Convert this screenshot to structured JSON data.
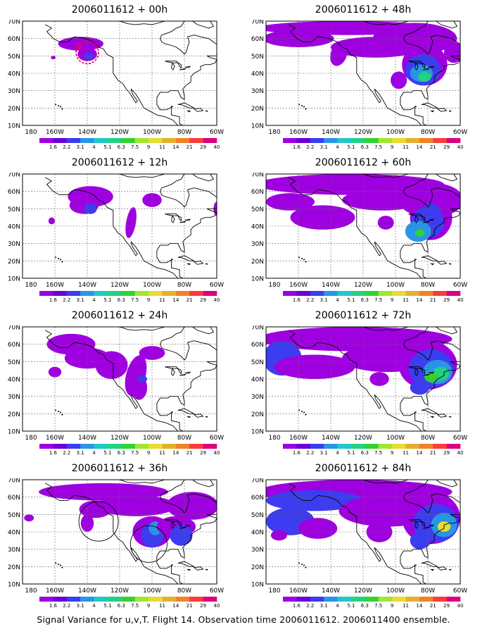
{
  "caption": "Signal Variance for u,v,T. Flight 14. Observation time 2006011612. 2006011400 ensemble.",
  "x_ticks": [
    "180",
    "160W",
    "140W",
    "120W",
    "100W",
    "80W",
    "60W"
  ],
  "y_ticks": [
    "10N",
    "20N",
    "30N",
    "40N",
    "50N",
    "60N",
    "70N"
  ],
  "colorbar": {
    "labels": [
      "1.6",
      "2.2",
      "3.1",
      "4",
      "5.1",
      "6.3",
      "7.5",
      "9",
      "11",
      "14",
      "21",
      "29",
      "40"
    ],
    "colors": [
      "#9f00e0",
      "#6b00d8",
      "#3c3cf0",
      "#2896e6",
      "#21c8c8",
      "#21d282",
      "#32d232",
      "#a0e632",
      "#e6dc32",
      "#e6af2d",
      "#f08228",
      "#fa3c3c",
      "#dc0082"
    ]
  },
  "panels": [
    {
      "title": "2006011612 + 00h"
    },
    {
      "title": "2006011612 + 48h"
    },
    {
      "title": "2006011612 + 12h"
    },
    {
      "title": "2006011612 + 60h"
    },
    {
      "title": "2006011612 + 24h"
    },
    {
      "title": "2006011612 + 72h"
    },
    {
      "title": "2006011612 + 36h"
    },
    {
      "title": "2006011612 + 84h"
    }
  ]
}
